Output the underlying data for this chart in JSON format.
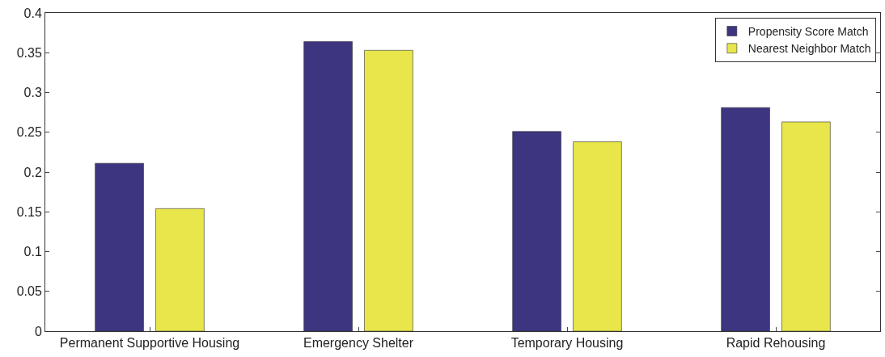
{
  "chart_data": {
    "type": "bar",
    "categories": [
      "Permanent Supportive Housing",
      "Emergency Shelter",
      "Temporary Housing",
      "Rapid Rehousing"
    ],
    "series": [
      {
        "name": "Propensity Score Match",
        "color": "#3d3580",
        "values": [
          0.211,
          0.364,
          0.251,
          0.281
        ]
      },
      {
        "name": "Nearest Neighbor Match",
        "color": "#e8e64a",
        "values": [
          0.154,
          0.353,
          0.238,
          0.263
        ]
      }
    ],
    "ylim": [
      0,
      0.4
    ],
    "yticks": [
      0,
      0.05,
      0.1,
      0.15,
      0.2,
      0.25,
      0.3,
      0.35,
      0.4
    ],
    "legend": "top right"
  }
}
